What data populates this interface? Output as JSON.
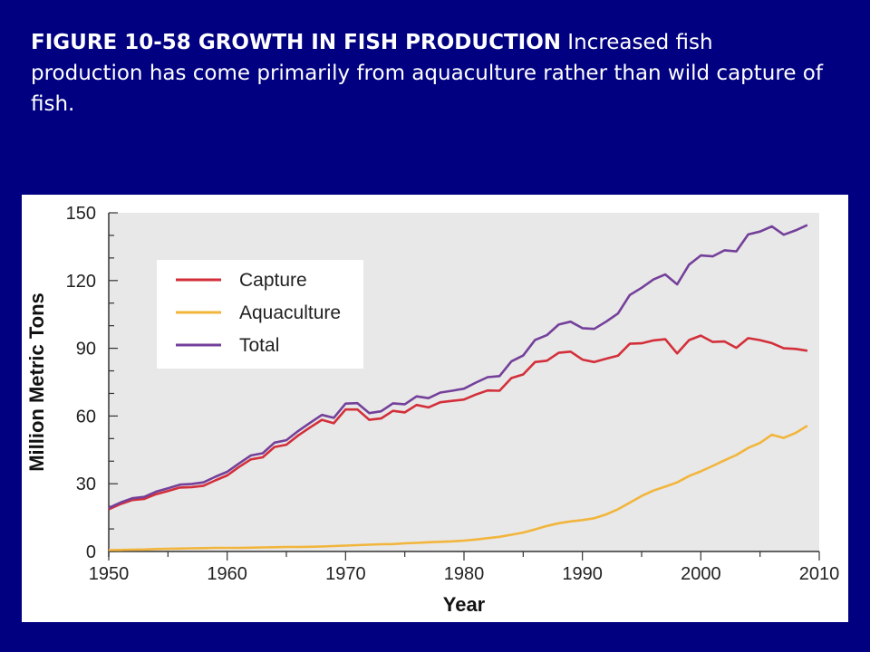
{
  "caption": {
    "bold": "FIGURE 10-58 GROWTH IN FISH PRODUCTION",
    "text": " Increased fish production has come primarily from aquaculture rather than wild capture of fish."
  },
  "colors": {
    "background": "#000080",
    "plot_bg": "#e8e8e8",
    "capture": "#d32f3a",
    "aquaculture": "#f2b53c",
    "total": "#74409a"
  },
  "chart_data": {
    "type": "line",
    "title": "",
    "xlabel": "Year",
    "ylabel": "Million Metric Tons",
    "xlim": [
      1950,
      2010
    ],
    "ylim": [
      0,
      150
    ],
    "xticks": [
      1950,
      1960,
      1970,
      1980,
      1990,
      2000,
      2010
    ],
    "yticks": [
      0,
      30,
      60,
      90,
      120,
      150
    ],
    "legend_position": "top-left",
    "grid": false,
    "x": [
      1950,
      1951,
      1952,
      1953,
      1954,
      1955,
      1956,
      1957,
      1958,
      1959,
      1960,
      1961,
      1962,
      1963,
      1964,
      1965,
      1966,
      1967,
      1968,
      1969,
      1970,
      1971,
      1972,
      1973,
      1974,
      1975,
      1976,
      1977,
      1978,
      1979,
      1980,
      1981,
      1982,
      1983,
      1984,
      1985,
      1986,
      1987,
      1988,
      1989,
      1990,
      1991,
      1992,
      1993,
      1994,
      1995,
      1996,
      1997,
      1998,
      1999,
      2000,
      2001,
      2002,
      2003,
      2004,
      2005,
      2006,
      2007,
      2008,
      2009
    ],
    "series": [
      {
        "name": "Capture",
        "values": [
          18.7,
          21.0,
          22.8,
          23.3,
          25.4,
          26.8,
          28.3,
          28.5,
          29.1,
          31.5,
          33.7,
          37.4,
          40.8,
          41.7,
          46.3,
          47.3,
          51.4,
          54.9,
          58.3,
          56.8,
          62.9,
          62.9,
          58.3,
          58.9,
          62.3,
          61.6,
          64.9,
          63.8,
          66.1,
          66.7,
          67.3,
          69.5,
          71.3,
          71.2,
          76.8,
          78.4,
          83.9,
          84.5,
          88.0,
          88.5,
          85.0,
          83.9,
          85.4,
          86.7,
          92.0,
          92.2,
          93.5,
          94.0,
          87.7,
          93.6,
          95.6,
          92.8,
          93.0,
          90.2,
          94.5,
          93.6,
          92.3,
          90.0,
          89.7,
          88.9
        ]
      },
      {
        "name": "Aquaculture",
        "values": [
          0.6,
          0.7,
          0.8,
          0.9,
          1.1,
          1.2,
          1.3,
          1.4,
          1.5,
          1.6,
          1.6,
          1.6,
          1.7,
          1.8,
          1.9,
          2.0,
          2.0,
          2.1,
          2.2,
          2.4,
          2.6,
          2.8,
          3.0,
          3.2,
          3.3,
          3.6,
          3.8,
          4.1,
          4.3,
          4.5,
          4.8,
          5.3,
          5.9,
          6.5,
          7.4,
          8.4,
          9.8,
          11.3,
          12.5,
          13.3,
          13.9,
          14.7,
          16.4,
          18.7,
          21.6,
          24.6,
          27.0,
          28.7,
          30.6,
          33.4,
          35.5,
          37.9,
          40.4,
          42.7,
          45.9,
          48.1,
          51.7,
          50.3,
          52.5,
          55.7
        ]
      },
      {
        "name": "Total",
        "values": [
          19.3,
          21.7,
          23.6,
          24.2,
          26.5,
          28.0,
          29.6,
          29.9,
          30.6,
          33.1,
          35.3,
          39.0,
          42.5,
          43.5,
          48.2,
          49.3,
          53.4,
          57.0,
          60.5,
          59.2,
          65.5,
          65.7,
          61.3,
          62.1,
          65.6,
          65.2,
          68.7,
          67.9,
          70.4,
          71.2,
          72.1,
          74.8,
          77.2,
          77.7,
          84.2,
          86.8,
          93.7,
          95.8,
          100.5,
          101.8,
          98.9,
          98.6,
          101.8,
          105.4,
          113.6,
          116.8,
          120.5,
          122.7,
          118.3,
          127.0,
          131.1,
          130.7,
          133.4,
          132.9,
          140.4,
          141.7,
          144.0,
          140.3,
          142.2,
          144.6
        ]
      }
    ]
  }
}
